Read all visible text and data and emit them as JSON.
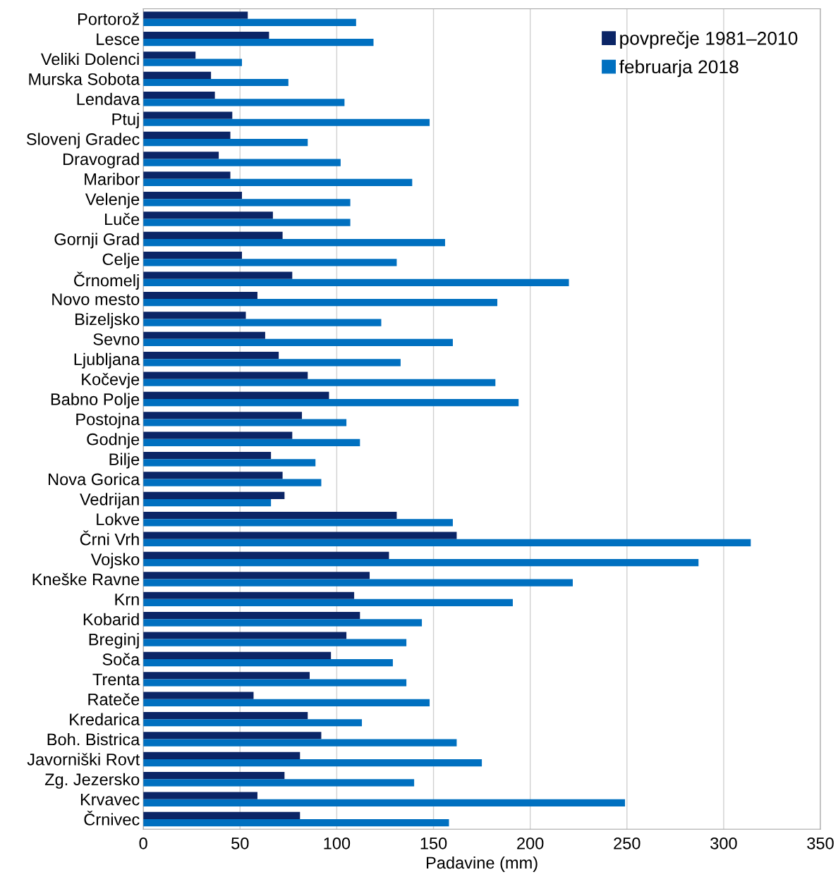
{
  "chart_data": {
    "type": "bar",
    "orientation": "horizontal",
    "xlabel": "Padavine (mm)",
    "categories": [
      "Portorož",
      "Lesce",
      "Veliki Dolenci",
      "Murska Sobota",
      "Lendava",
      "Ptuj",
      "Slovenj Gradec",
      "Dravograd",
      "Maribor",
      "Velenje",
      "Luče",
      "Gornji Grad",
      "Celje",
      "Črnomelj",
      "Novo mesto",
      "Bizeljsko",
      "Sevno",
      "Ljubljana",
      "Kočevje",
      "Babno Polje",
      "Postojna",
      "Godnje",
      "Bilje",
      "Nova Gorica",
      "Vedrijan",
      "Lokve",
      "Črni Vrh",
      "Vojsko",
      "Kneške Ravne",
      "Krn",
      "Kobarid",
      "Breginj",
      "Soča",
      "Trenta",
      "Rateče",
      "Kredarica",
      "Boh. Bistrica",
      "Javorniški Rovt",
      "Zg. Jezersko",
      "Krvavec",
      "Črnivec"
    ],
    "series": [
      {
        "name": "povprečje 1981–2010",
        "color": "#0b2566",
        "values": [
          54,
          65,
          27,
          35,
          37,
          46,
          45,
          39,
          45,
          51,
          67,
          72,
          51,
          77,
          59,
          53,
          63,
          70,
          85,
          96,
          82,
          77,
          66,
          72,
          73,
          131,
          162,
          127,
          117,
          109,
          112,
          105,
          97,
          86,
          57,
          85,
          92,
          81,
          73,
          59,
          81
        ]
      },
      {
        "name": "februarja 2018",
        "color": "#0070c0",
        "values": [
          110,
          119,
          51,
          75,
          104,
          148,
          85,
          102,
          139,
          107,
          107,
          156,
          131,
          220,
          183,
          123,
          160,
          133,
          182,
          194,
          105,
          112,
          89,
          92,
          66,
          160,
          314,
          287,
          222,
          191,
          144,
          136,
          129,
          136,
          148,
          113,
          162,
          175,
          140,
          249,
          158
        ]
      }
    ],
    "xlim": [
      0,
      350
    ],
    "xticks": [
      0,
      50,
      100,
      150,
      200,
      250,
      300,
      350
    ],
    "grid": "x",
    "legend": "top right"
  }
}
